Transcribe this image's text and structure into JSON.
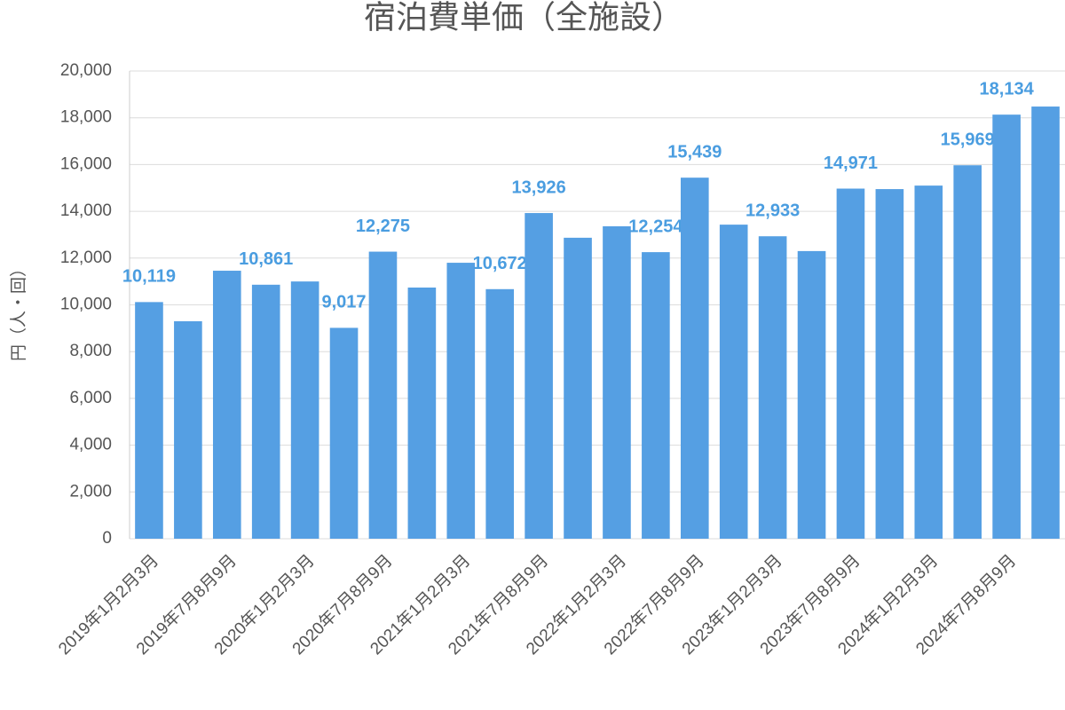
{
  "chart_data": {
    "type": "bar",
    "title": "宿泊費単価（全施設）",
    "y_label": "円（人・回）",
    "categories": [
      "2019年1月2月3月",
      null,
      "2019年7月8月9月",
      null,
      "2020年1月2月3月",
      null,
      "2020年7月8月9月",
      null,
      "2021年1月2月3月",
      null,
      "2021年7月8月9月",
      null,
      "2022年1月2月3月",
      null,
      "2022年7月8月9月",
      null,
      "2023年1月2月3月",
      null,
      "2023年7月8月9月",
      null,
      "2024年1月2月3月",
      null,
      "2024年7月8月9月",
      null
    ],
    "values": [
      10119,
      9300,
      11460,
      10861,
      11000,
      9017,
      12275,
      10740,
      11800,
      10672,
      13926,
      12870,
      13360,
      12254,
      15439,
      13430,
      12933,
      12300,
      14971,
      14950,
      15100,
      15969,
      18134,
      18480
    ],
    "value_labels": [
      "10,119",
      null,
      null,
      "10,861",
      null,
      "9,017",
      "12,275",
      null,
      null,
      "10,672",
      "13,926",
      null,
      null,
      "12,254",
      "15,439",
      null,
      "12,933",
      null,
      "14,971",
      null,
      null,
      "15,969",
      "18,134",
      null
    ],
    "color": "#559fe3",
    "label_color": "#4a9de0",
    "ylim": [
      0,
      20000
    ],
    "yticks": [
      0,
      {
        "value": 2000,
        "label": "2,000"
      },
      {
        "value": 4000,
        "label": "4,000"
      },
      {
        "value": 6000,
        "label": "6,000"
      },
      {
        "value": 8000,
        "label": "8,000"
      },
      {
        "value": 10000,
        "label": "10,000"
      },
      {
        "value": 12000,
        "label": "12,000"
      },
      {
        "value": 14000,
        "label": "14,000"
      },
      {
        "value": 16000,
        "label": "16,000"
      },
      {
        "value": 18000,
        "label": "18,000"
      },
      {
        "value": 20000,
        "label": "20,000"
      }
    ],
    "grid": true
  }
}
